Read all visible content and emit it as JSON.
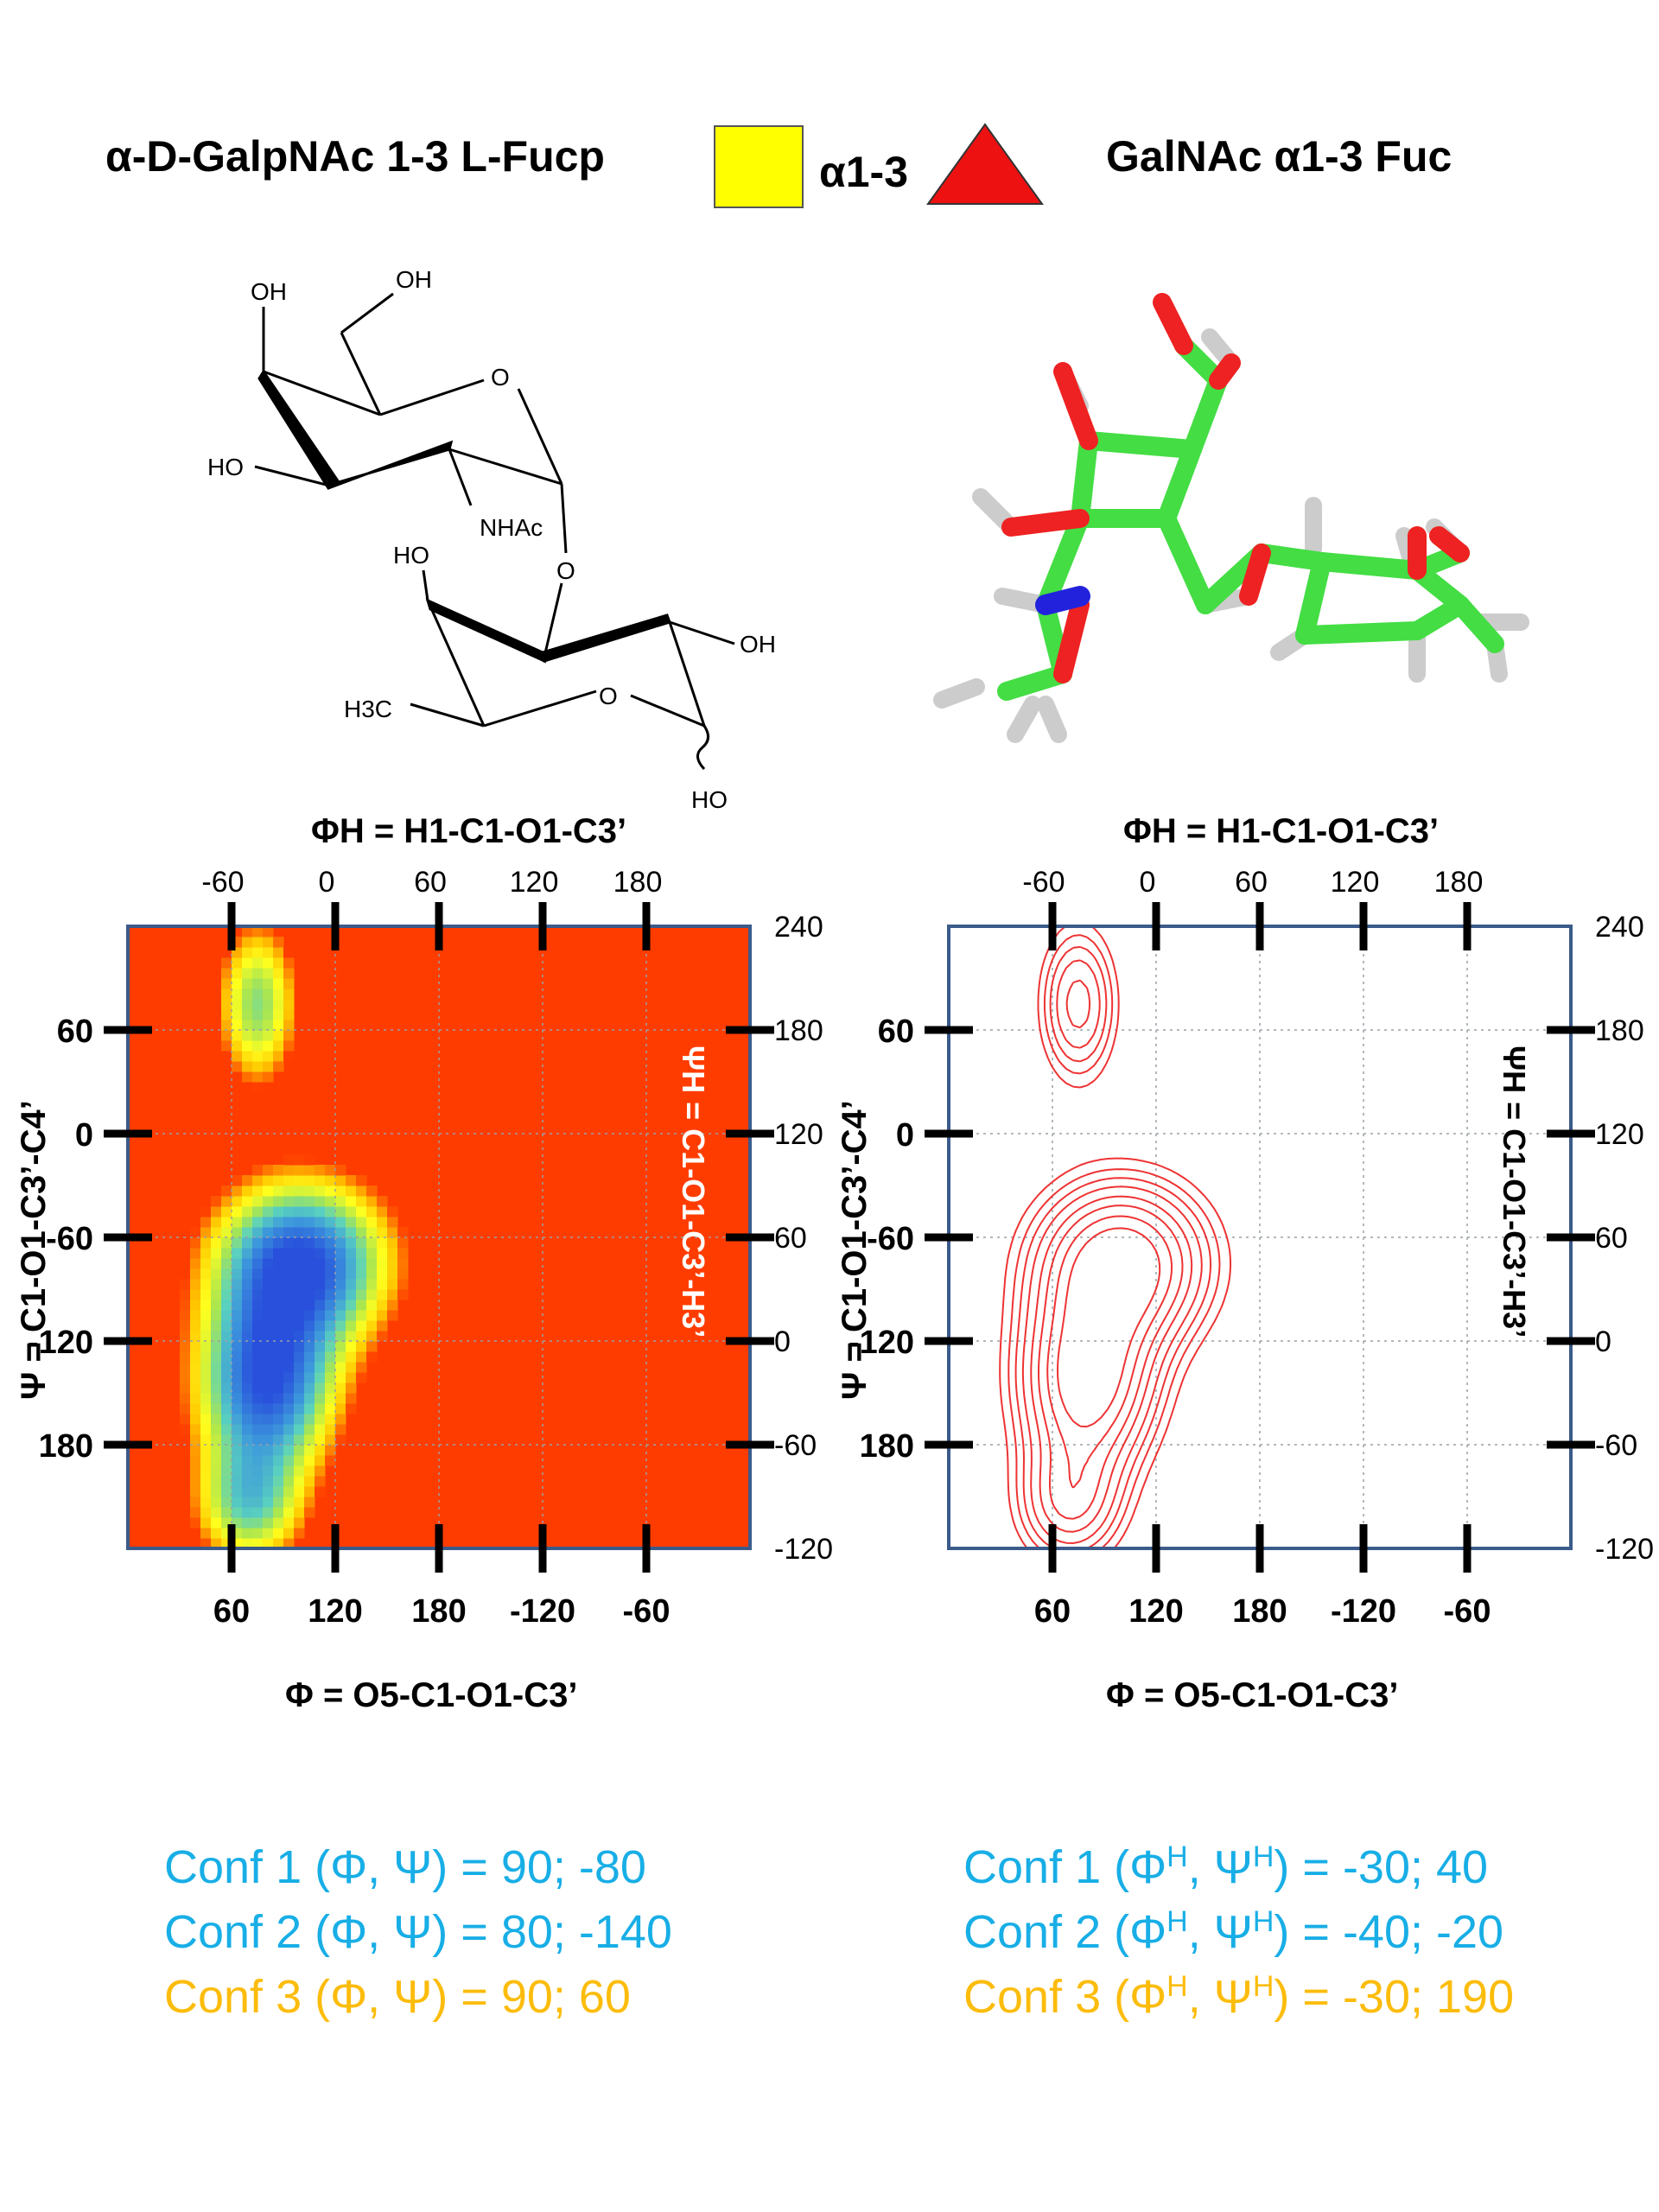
{
  "header": {
    "left_title": "α-D-GalpNAc 1-3 L-Fucp",
    "linkage": "α1-3",
    "right_title": "GalNAc α1-3 Fuc",
    "colors": {
      "galnac_square": "#ffff00",
      "fucose_triangle": "#ee1111"
    }
  },
  "structure": {
    "labels": [
      "OH",
      "OH",
      "O",
      "HO",
      "NHAc",
      "O",
      "HO",
      "OH",
      "O",
      "H3C",
      "HO"
    ]
  },
  "chart_data": [
    {
      "type": "heatmap",
      "panel": "left",
      "title": "",
      "top_label": "ΦH = H1-C1-O1-C3’",
      "bottom_label": "Φ = O5-C1-O1-C3’",
      "left_label": "Ψ = C1-O1-C3’-C4’",
      "right_label": "ΨH = C1-O1-C3’-H3’",
      "top_ticks": [
        "-60",
        "0",
        "60",
        "120",
        "180"
      ],
      "bottom_ticks": [
        "60",
        "120",
        "180",
        "-120",
        "-60"
      ],
      "left_ticks": [
        "60",
        "0",
        "-60",
        "-120",
        "180"
      ],
      "right_ticks": [
        "240",
        "180",
        "120",
        "60",
        "0",
        "-60",
        "-120"
      ],
      "xlim": [
        0,
        360
      ],
      "ylim": [
        -240,
        120
      ],
      "background_color": "#ff3c00",
      "grid": true,
      "minima": [
        {
          "phi": 90,
          "psi": -80
        },
        {
          "phi": 80,
          "psi": -140
        },
        {
          "phi": 90,
          "psi": 60
        }
      ]
    },
    {
      "type": "contour",
      "panel": "right",
      "title": "",
      "top_label": "ΦH = H1-C1-O1-C3’",
      "bottom_label": "Φ = O5-C1-O1-C3’",
      "left_label": "Ψ = C1-O1-C3’-C4’",
      "right_label": "ΨH = C1-O1-C3’-H3’",
      "top_ticks": [
        "-60",
        "0",
        "60",
        "120",
        "180"
      ],
      "bottom_ticks": [
        "60",
        "120",
        "180",
        "-120",
        "-60"
      ],
      "left_ticks": [
        "60",
        "0",
        "-60",
        "-120",
        "180"
      ],
      "right_ticks": [
        "240",
        "180",
        "120",
        "60",
        "0",
        "-60",
        "-120"
      ],
      "xlim": [
        0,
        360
      ],
      "ylim": [
        -240,
        120
      ],
      "line_color": "#ee3333",
      "grid": true
    }
  ],
  "conformers": {
    "left": [
      {
        "label": "Conf 1 (Φ, Ψ) = 90;  -80",
        "color": "#18aee6"
      },
      {
        "label": "Conf 2 (Φ, Ψ) = 80; -140",
        "color": "#18aee6"
      },
      {
        "label": "Conf 3 (Φ, Ψ) = 90;  60",
        "color": "#fcbc0c"
      }
    ],
    "right": [
      {
        "prefix": "Conf 1 (Φ",
        "mid": ", Ψ",
        "suffix": ") = -30; 40",
        "sup": "H",
        "color": "#18aee6"
      },
      {
        "prefix": "Conf 2 (Φ",
        "mid": ", Ψ",
        "suffix": ") = -40; -20",
        "sup": "H",
        "color": "#18aee6"
      },
      {
        "prefix": "Conf 3 (Φ",
        "mid": ", Ψ",
        "suffix": ") = -30; 190",
        "sup": "H",
        "color": "#fcbc0c"
      }
    ]
  }
}
